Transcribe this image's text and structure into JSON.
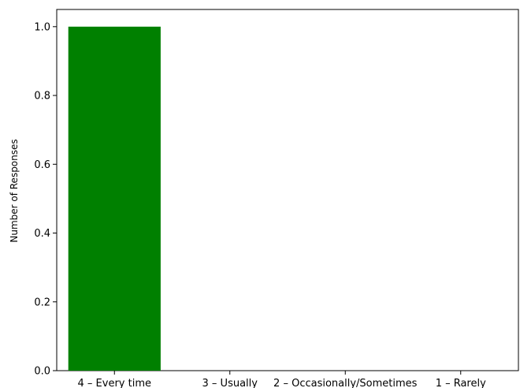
{
  "chart_data": {
    "type": "bar",
    "categories": [
      "4 – Every time",
      "3 – Usually",
      "2 – Occasionally/Sometimes",
      "1 – Rarely"
    ],
    "values": [
      1,
      0,
      0,
      0
    ],
    "title": "",
    "xlabel": "",
    "ylabel": "Number of Responses",
    "ylim": [
      0,
      1.05
    ],
    "yticks": [
      "0.0",
      "0.2",
      "0.4",
      "0.6",
      "0.8",
      "1.0"
    ],
    "bar_color": "#008000",
    "grid": false
  }
}
